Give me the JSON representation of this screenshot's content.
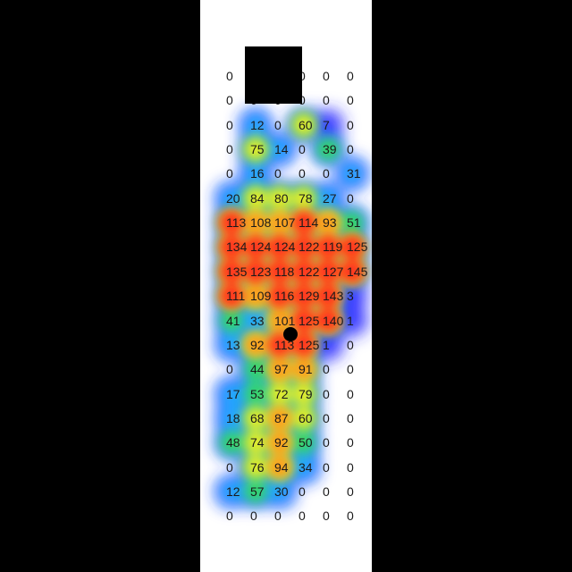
{
  "heatmap": {
    "colors": {
      "low": "#0000ff",
      "mid": "#ffff00",
      "high": "#ff0000",
      "background": "#ffffff",
      "frame": "#000000"
    },
    "rows": [
      [
        "0",
        "0",
        "0",
        "0",
        "0",
        "0"
      ],
      [
        "0",
        "0",
        "0",
        "0",
        "0",
        "0"
      ],
      [
        "0",
        "12",
        "0",
        "60",
        "7",
        "0"
      ],
      [
        "0",
        "75",
        "14",
        "0",
        "39",
        "0"
      ],
      [
        "0",
        "16",
        "0",
        "0",
        "0",
        "31"
      ],
      [
        "20",
        "84",
        "80",
        "78",
        "27",
        "0"
      ],
      [
        "113",
        "108",
        "107",
        "114",
        "93",
        "51"
      ],
      [
        "134",
        "124",
        "124",
        "122",
        "119",
        "125"
      ],
      [
        "135",
        "123",
        "118",
        "122",
        "127",
        "145"
      ],
      [
        "111",
        "109",
        "116",
        "129",
        "143",
        "3"
      ],
      [
        "41",
        "33",
        "101",
        "125",
        "140",
        "1"
      ],
      [
        "13",
        "92",
        "113",
        "125",
        "1",
        "0"
      ],
      [
        "0",
        "44",
        "97",
        "91",
        "0",
        "0"
      ],
      [
        "17",
        "53",
        "72",
        "79",
        "0",
        "0"
      ],
      [
        "18",
        "68",
        "87",
        "60",
        "0",
        "0"
      ],
      [
        "48",
        "74",
        "92",
        "50",
        "0",
        "0"
      ],
      [
        "0",
        "76",
        "94",
        "34",
        "0",
        "0"
      ],
      [
        "12",
        "57",
        "30",
        "0",
        "0",
        "0"
      ],
      [
        "0",
        "0",
        "0",
        "0",
        "0",
        "0"
      ]
    ],
    "max_value": 145,
    "marker": {
      "row": 10.55,
      "col": 2.65,
      "shape": "center-of-pressure-dot"
    }
  }
}
